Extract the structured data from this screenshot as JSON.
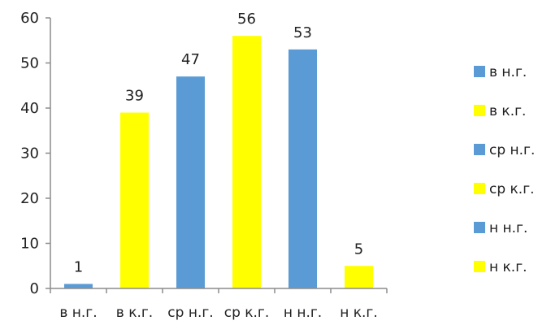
{
  "chart_data": {
    "type": "bar",
    "categories": [
      "в н.г.",
      "в к.г.",
      "ср н.г.",
      "ср к.г.",
      "н н.г.",
      "н к.г."
    ],
    "values": [
      1,
      39,
      47,
      56,
      53,
      5
    ],
    "bar_colors": [
      "#5B9BD5",
      "#FFFF00",
      "#5B9BD5",
      "#FFFF00",
      "#5B9BD5",
      "#FFFF00"
    ],
    "ylim": [
      0,
      60
    ],
    "yticks": [
      0,
      10,
      20,
      30,
      40,
      50,
      60
    ],
    "data_labels": true,
    "grid": false,
    "legend": {
      "placement": "right",
      "entries": [
        {
          "label": "в н.г.",
          "color": "#5B9BD5"
        },
        {
          "label": "в к.г.",
          "color": "#FFFF00"
        },
        {
          "label": "ср н.г.",
          "color": "#5B9BD5"
        },
        {
          "label": "ср к.г.",
          "color": "#FFFF00"
        },
        {
          "label": "н н.г.",
          "color": "#5B9BD5"
        },
        {
          "label": "н к.г.",
          "color": "#FFFF00"
        }
      ]
    },
    "title": "",
    "xlabel": "",
    "ylabel": ""
  },
  "colors": {
    "axis": "#8C8C8C"
  }
}
